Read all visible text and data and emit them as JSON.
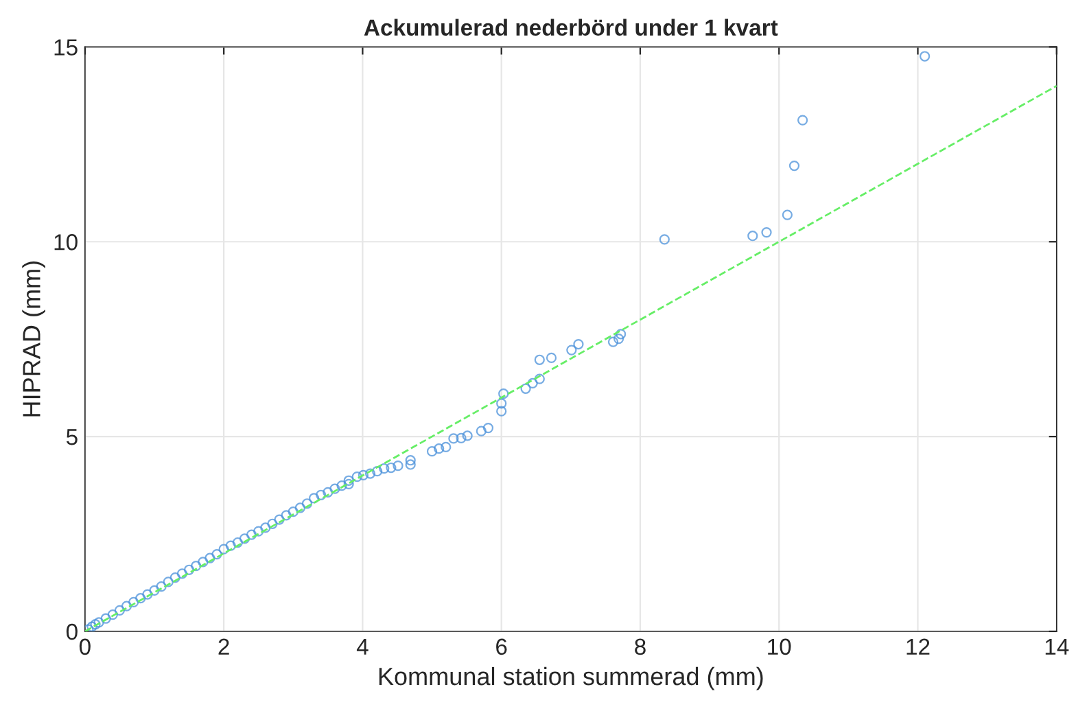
{
  "chart_data": {
    "type": "scatter",
    "title": "Ackumulerad nederbörd under 1 kvart",
    "xlabel": "Kommunal station summerad (mm)",
    "ylabel": "HIPRAD (mm)",
    "xlim": [
      0,
      14
    ],
    "ylim": [
      0,
      15
    ],
    "xticks": [
      0,
      2,
      4,
      6,
      8,
      10,
      12,
      14
    ],
    "yticks": [
      0,
      5,
      10,
      15
    ],
    "grid": true,
    "series": [
      {
        "marker": "circle",
        "color": "#4a90d9",
        "x": [
          0.05,
          0.1,
          0.15,
          0.2,
          0.3,
          0.4,
          0.5,
          0.6,
          0.7,
          0.8,
          0.9,
          1.0,
          1.1,
          1.2,
          1.3,
          1.4,
          1.5,
          1.6,
          1.7,
          1.8,
          1.9,
          2.0,
          2.1,
          2.2,
          2.3,
          2.4,
          2.5,
          2.6,
          2.7,
          2.8,
          2.9,
          3.0,
          3.1,
          3.2,
          3.3,
          3.4,
          3.5,
          3.6,
          3.7,
          3.8,
          3.8,
          3.92,
          4.01,
          4.11,
          4.21,
          4.31,
          4.41,
          4.51,
          4.69,
          4.69,
          5.0,
          5.1,
          5.2,
          5.31,
          5.42,
          5.51,
          5.71,
          5.81,
          6.0,
          6.0,
          6.03,
          6.35,
          6.45,
          6.55,
          6.55,
          6.72,
          7.01,
          7.11,
          7.61,
          7.69,
          7.72,
          8.35,
          9.62,
          9.82,
          10.12,
          10.22,
          10.34,
          12.1
        ],
        "values": [
          0.05,
          0.12,
          0.18,
          0.23,
          0.33,
          0.43,
          0.54,
          0.65,
          0.75,
          0.85,
          0.95,
          1.05,
          1.15,
          1.27,
          1.38,
          1.48,
          1.58,
          1.68,
          1.78,
          1.88,
          1.98,
          2.11,
          2.2,
          2.28,
          2.38,
          2.48,
          2.57,
          2.66,
          2.76,
          2.87,
          2.98,
          3.07,
          3.17,
          3.28,
          3.42,
          3.5,
          3.57,
          3.66,
          3.74,
          3.78,
          3.87,
          3.97,
          4.01,
          4.05,
          4.11,
          4.18,
          4.2,
          4.25,
          4.28,
          4.39,
          4.62,
          4.69,
          4.73,
          4.95,
          4.96,
          5.02,
          5.14,
          5.22,
          5.65,
          5.85,
          6.1,
          6.23,
          6.37,
          6.48,
          6.97,
          7.02,
          7.22,
          7.37,
          7.43,
          7.51,
          7.63,
          10.06,
          10.15,
          10.24,
          10.69,
          11.95,
          13.12,
          14.76
        ]
      },
      {
        "type": "line",
        "color": "#66ee66",
        "line_style": "dashed",
        "x": [
          0,
          14
        ],
        "values": [
          0,
          14
        ]
      }
    ]
  }
}
